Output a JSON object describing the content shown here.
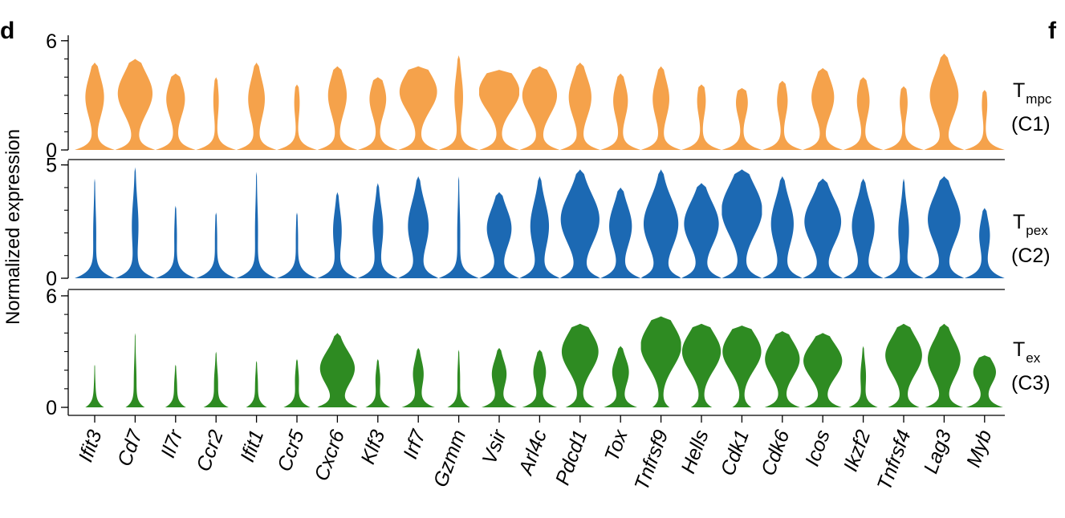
{
  "figure": {
    "panel_letter_left": "d",
    "panel_letter_right": "f"
  },
  "chart_data": {
    "type": "violin",
    "ylabel": "Normalized expression",
    "genes": [
      "Ifit3",
      "Cd7",
      "Il7r",
      "Ccr2",
      "Ifit1",
      "Ccr5",
      "Cxcr6",
      "Klf3",
      "Irf7",
      "Gzmm",
      "Vsir",
      "Arl4c",
      "Pdcd1",
      "Tox",
      "Tnfrsf9",
      "Hells",
      "Cdk1",
      "Cdk6",
      "Icos",
      "Ikzf2",
      "Tnfrsf4",
      "Lag3",
      "Myb"
    ],
    "rows": [
      {
        "label_main": "T",
        "label_sub": "mpc",
        "label_cluster": "(C1)",
        "color": "#F5A24B",
        "ylim": [
          0,
          6.3
        ],
        "ticks": [
          {
            "value": 0,
            "label": "0"
          },
          {
            "value": 6,
            "label": "6"
          }
        ],
        "max": [
          4.8,
          5.0,
          4.2,
          4.0,
          4.8,
          3.6,
          4.6,
          4.0,
          4.6,
          5.2,
          4.4,
          4.6,
          4.8,
          4.2,
          4.6,
          3.6,
          3.4,
          3.8,
          4.5,
          4.0,
          3.5,
          5.3,
          3.3
        ],
        "center": [
          2.9,
          3.1,
          2.8,
          2.7,
          2.8,
          2.6,
          3.0,
          2.8,
          3.2,
          2.9,
          3.2,
          3.0,
          2.9,
          2.7,
          2.8,
          2.7,
          2.6,
          2.7,
          2.9,
          2.7,
          2.6,
          3.0,
          2.5
        ],
        "body_width": [
          0.45,
          0.85,
          0.45,
          0.12,
          0.4,
          0.12,
          0.45,
          0.4,
          0.92,
          0.2,
          1.0,
          0.85,
          0.55,
          0.35,
          0.4,
          0.2,
          0.28,
          0.25,
          0.55,
          0.3,
          0.18,
          0.7,
          0.12
        ],
        "base_width": [
          1.0,
          1.0,
          1.0,
          1.0,
          1.0,
          1.0,
          1.0,
          1.0,
          1.0,
          1.0,
          1.0,
          1.0,
          1.0,
          1.0,
          1.0,
          1.0,
          1.0,
          1.0,
          1.0,
          1.0,
          1.0,
          1.0,
          1.0
        ]
      },
      {
        "label_main": "T",
        "label_sub": "pex",
        "label_cluster": "(C2)",
        "color": "#1C69B3",
        "ylim": [
          0,
          5.2
        ],
        "ticks": [
          {
            "value": 0,
            "label": "0"
          },
          {
            "value": 5,
            "label": "5"
          }
        ],
        "max": [
          4.4,
          4.9,
          3.2,
          2.9,
          4.7,
          2.9,
          3.8,
          4.2,
          4.5,
          4.5,
          3.8,
          4.5,
          4.8,
          4.0,
          4.8,
          4.2,
          4.8,
          4.5,
          4.4,
          4.4,
          4.4,
          4.5,
          3.1
        ],
        "center": [
          2.0,
          2.3,
          1.9,
          1.8,
          2.1,
          1.8,
          2.1,
          2.2,
          2.3,
          2.0,
          2.2,
          2.3,
          2.6,
          2.3,
          2.4,
          2.4,
          3.0,
          2.4,
          2.5,
          2.3,
          2.1,
          2.6,
          1.9
        ],
        "body_width": [
          0.06,
          0.15,
          0.05,
          0.04,
          0.06,
          0.04,
          0.2,
          0.25,
          0.5,
          0.06,
          0.6,
          0.45,
          0.95,
          0.55,
          0.85,
          0.85,
          1.0,
          0.55,
          0.9,
          0.55,
          0.25,
          0.8,
          0.25
        ],
        "base_width": [
          1.0,
          1.0,
          1.0,
          1.0,
          1.0,
          1.0,
          1.0,
          1.0,
          1.0,
          1.0,
          1.0,
          1.0,
          1.0,
          1.0,
          1.0,
          1.0,
          1.0,
          1.0,
          1.0,
          1.0,
          1.0,
          1.0,
          1.0
        ]
      },
      {
        "label_main": "T",
        "label_sub": "ex",
        "label_cluster": "(C3)",
        "color": "#2E8B22",
        "ylim": [
          0,
          6.3
        ],
        "ticks": [
          {
            "value": 0,
            "label": "0"
          },
          {
            "value": 6,
            "label": "6"
          }
        ],
        "max": [
          2.3,
          4.0,
          2.3,
          3.0,
          2.5,
          2.6,
          4.0,
          2.6,
          3.2,
          3.1,
          3.2,
          3.1,
          4.5,
          3.3,
          4.9,
          4.5,
          4.4,
          4.1,
          4.0,
          3.3,
          4.5,
          4.5,
          2.8
        ],
        "center": [
          1.0,
          1.5,
          1.2,
          1.4,
          1.3,
          1.5,
          2.1,
          1.5,
          1.8,
          1.6,
          1.8,
          1.9,
          3.0,
          1.9,
          3.3,
          3.0,
          3.0,
          2.6,
          2.5,
          1.7,
          2.8,
          2.6,
          1.9
        ],
        "body_width": [
          0.02,
          0.05,
          0.05,
          0.08,
          0.05,
          0.08,
          0.85,
          0.1,
          0.25,
          0.05,
          0.35,
          0.3,
          0.9,
          0.4,
          1.0,
          0.95,
          0.95,
          0.85,
          0.95,
          0.12,
          0.9,
          0.8,
          0.55
        ],
        "base_width": [
          0.45,
          0.45,
          0.5,
          0.6,
          0.5,
          0.65,
          1.0,
          0.6,
          0.8,
          0.55,
          0.85,
          0.85,
          0.7,
          0.8,
          0.4,
          0.5,
          0.45,
          0.85,
          0.9,
          0.7,
          0.75,
          0.9,
          0.9
        ]
      }
    ]
  }
}
